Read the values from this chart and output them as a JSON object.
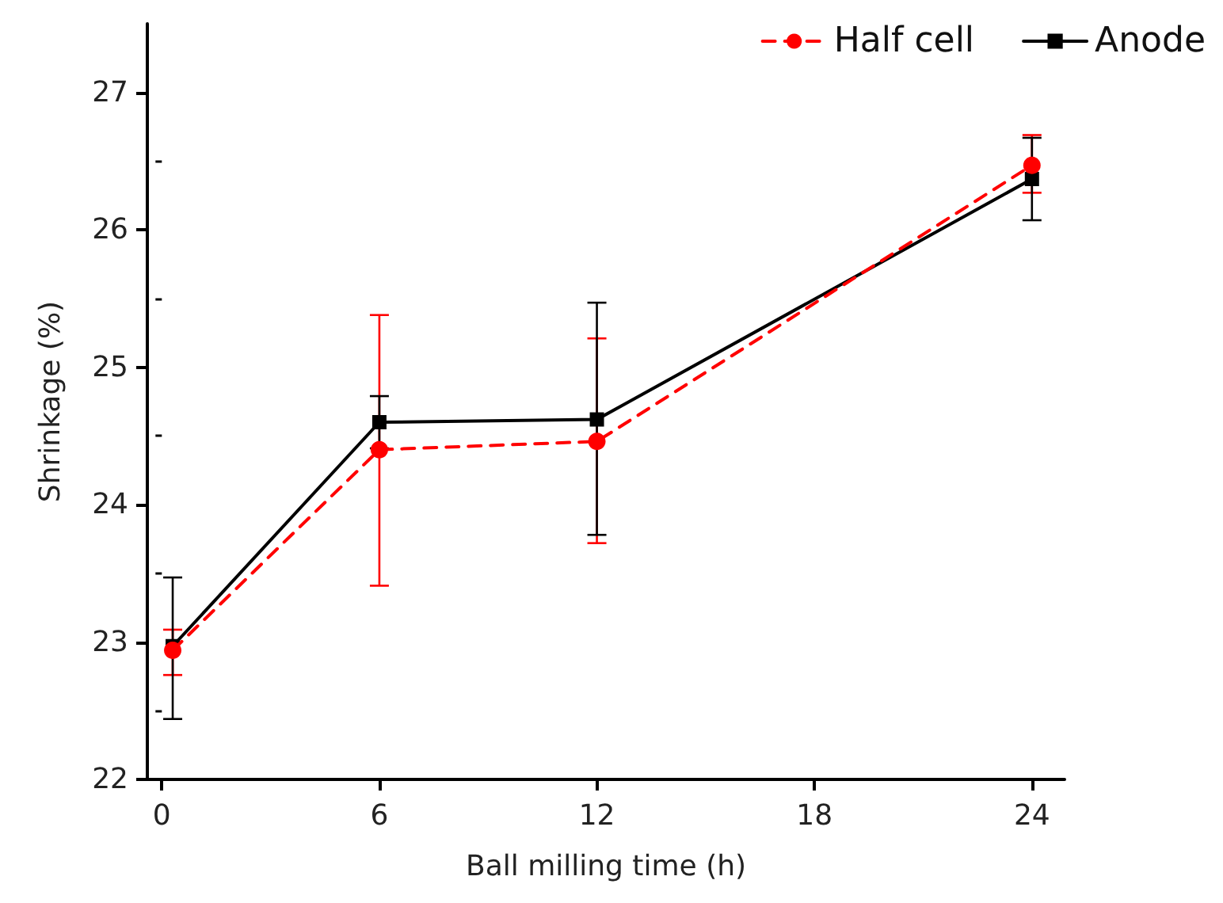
{
  "chart_data": {
    "type": "line",
    "xlabel": "Ball milling time (h)",
    "ylabel": "Shrinkage (%)",
    "xlim": [
      -0.4,
      24.9
    ],
    "xticks": [
      0,
      6,
      12,
      18,
      24
    ],
    "ylim": [
      22,
      27.5
    ],
    "yticks": [
      22,
      23,
      24,
      25,
      26,
      27
    ],
    "grid": false,
    "legend": "top right",
    "series": [
      {
        "name": "Half cell",
        "color": "#ff0000",
        "marker": "circle",
        "line_style": "dashed",
        "x": [
          0.3,
          6,
          12,
          24
        ],
        "values": [
          22.94,
          24.4,
          24.46,
          26.47
        ],
        "errors": [
          [
            22.76,
            23.09
          ],
          [
            23.41,
            25.38
          ],
          [
            23.72,
            25.21
          ],
          [
            26.27,
            26.69
          ]
        ]
      },
      {
        "name": "Anode",
        "color": "#000000",
        "marker": "square",
        "line_style": "solid",
        "x": [
          0.3,
          6,
          12,
          24
        ],
        "values": [
          22.97,
          24.6,
          24.62,
          26.37
        ],
        "errors": [
          [
            22.44,
            23.47
          ],
          [
            24.41,
            24.79
          ],
          [
            23.78,
            25.47
          ],
          [
            26.07,
            26.67
          ]
        ]
      }
    ]
  }
}
